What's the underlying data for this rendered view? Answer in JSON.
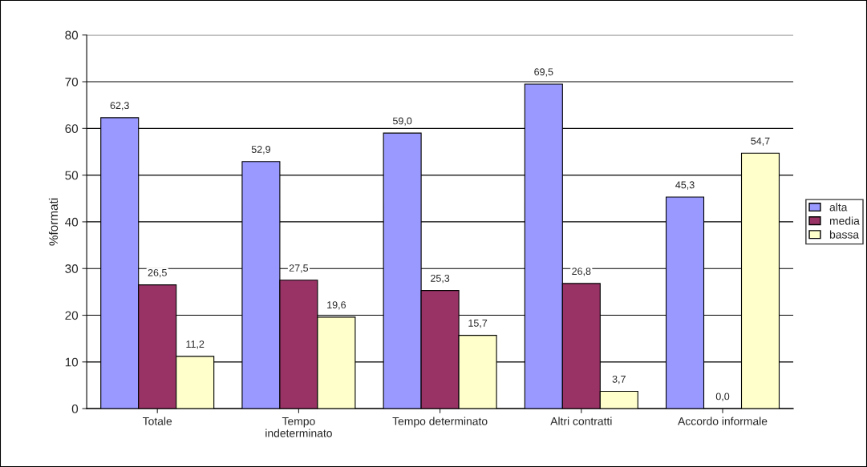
{
  "chart_data": {
    "type": "bar",
    "ylabel": "%formati",
    "categories": [
      "Totale",
      "Tempo\nindeterminato",
      "Tempo determinato",
      "Altri contratti",
      "Accordo informale"
    ],
    "series": [
      {
        "name": "alta",
        "color": "#9999ff",
        "values": [
          62.3,
          52.9,
          59.0,
          69.5,
          45.3
        ],
        "value_labels": [
          "62,3",
          "52,9",
          "59,0",
          "69,5",
          "45,3"
        ]
      },
      {
        "name": "media",
        "color": "#993366",
        "values": [
          26.5,
          27.5,
          25.3,
          26.8,
          0.0
        ],
        "value_labels": [
          "26,5",
          "27,5",
          "25,3",
          "26,8",
          "0,0"
        ]
      },
      {
        "name": "bassa",
        "color": "#ffffcc",
        "values": [
          11.2,
          19.6,
          15.7,
          3.7,
          54.7
        ],
        "value_labels": [
          "11,2",
          "19,6",
          "15,7",
          "3,7",
          "54,7"
        ]
      }
    ],
    "ylim": [
      0,
      80
    ],
    "yticks": [
      0,
      10,
      20,
      30,
      40,
      50,
      60,
      70,
      80
    ],
    "grid": "y",
    "legend": "right"
  }
}
